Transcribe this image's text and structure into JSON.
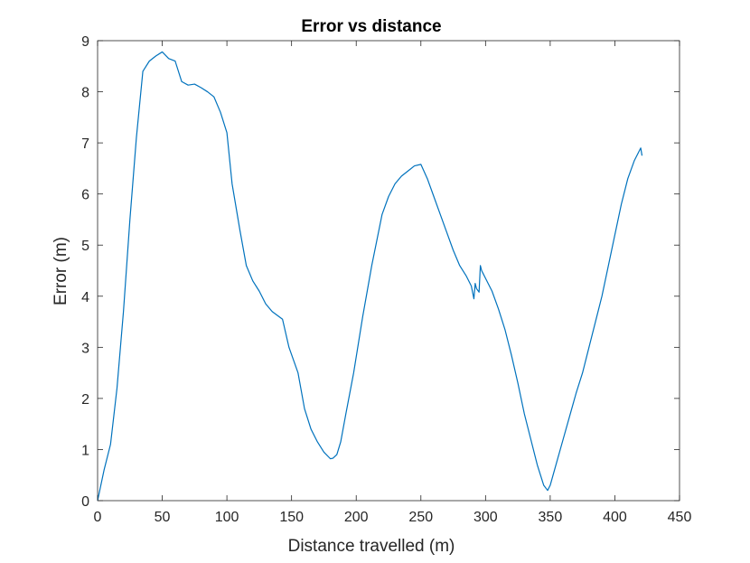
{
  "chart_data": {
    "type": "line",
    "title": "Error vs distance",
    "xlabel": "Distance travelled (m)",
    "ylabel": "Error (m)",
    "xlim": [
      0,
      450
    ],
    "ylim": [
      0,
      9
    ],
    "xticks": [
      "0",
      "50",
      "100",
      "150",
      "200",
      "250",
      "300",
      "350",
      "400",
      "450"
    ],
    "yticks": [
      "0",
      "1",
      "2",
      "3",
      "4",
      "5",
      "6",
      "7",
      "8",
      "9"
    ],
    "grid": false,
    "line_color": "#0072BD",
    "series": [
      {
        "x": [
          0,
          5,
          10,
          15,
          20,
          25,
          30,
          35,
          40,
          45,
          50,
          55,
          60,
          65,
          70,
          75,
          80,
          85,
          90,
          95,
          100,
          104,
          110,
          115,
          120,
          125,
          130,
          135,
          143,
          148,
          155,
          160,
          165,
          170,
          175,
          180,
          182,
          185,
          188,
          192,
          198,
          205,
          212,
          220,
          225,
          230,
          235,
          240,
          245,
          250,
          255,
          260,
          265,
          270,
          275,
          280,
          285,
          289,
          291,
          292,
          293,
          295,
          296,
          297,
          298,
          300,
          305,
          310,
          315,
          320,
          325,
          330,
          335,
          340,
          345,
          348,
          350,
          355,
          360,
          365,
          370,
          375,
          380,
          385,
          390,
          395,
          400,
          405,
          410,
          415,
          420,
          421
        ],
        "y": [
          0,
          0.6,
          1.1,
          2.2,
          3.7,
          5.5,
          7.1,
          8.4,
          8.6,
          8.7,
          8.78,
          8.65,
          8.6,
          8.2,
          8.13,
          8.15,
          8.08,
          8.0,
          7.9,
          7.6,
          7.2,
          6.2,
          5.3,
          4.6,
          4.3,
          4.1,
          3.85,
          3.7,
          3.55,
          3.0,
          2.5,
          1.8,
          1.4,
          1.15,
          0.95,
          0.82,
          0.83,
          0.9,
          1.15,
          1.7,
          2.5,
          3.6,
          4.6,
          5.6,
          5.95,
          6.2,
          6.35,
          6.45,
          6.55,
          6.58,
          6.3,
          5.95,
          5.6,
          5.25,
          4.9,
          4.6,
          4.4,
          4.2,
          3.95,
          4.25,
          4.15,
          4.08,
          4.6,
          4.5,
          4.45,
          4.35,
          4.1,
          3.75,
          3.35,
          2.85,
          2.3,
          1.7,
          1.2,
          0.7,
          0.3,
          0.2,
          0.3,
          0.75,
          1.2,
          1.65,
          2.1,
          2.5,
          3.0,
          3.5,
          4.0,
          4.6,
          5.2,
          5.8,
          6.3,
          6.65,
          6.9,
          6.75
        ]
      }
    ]
  }
}
